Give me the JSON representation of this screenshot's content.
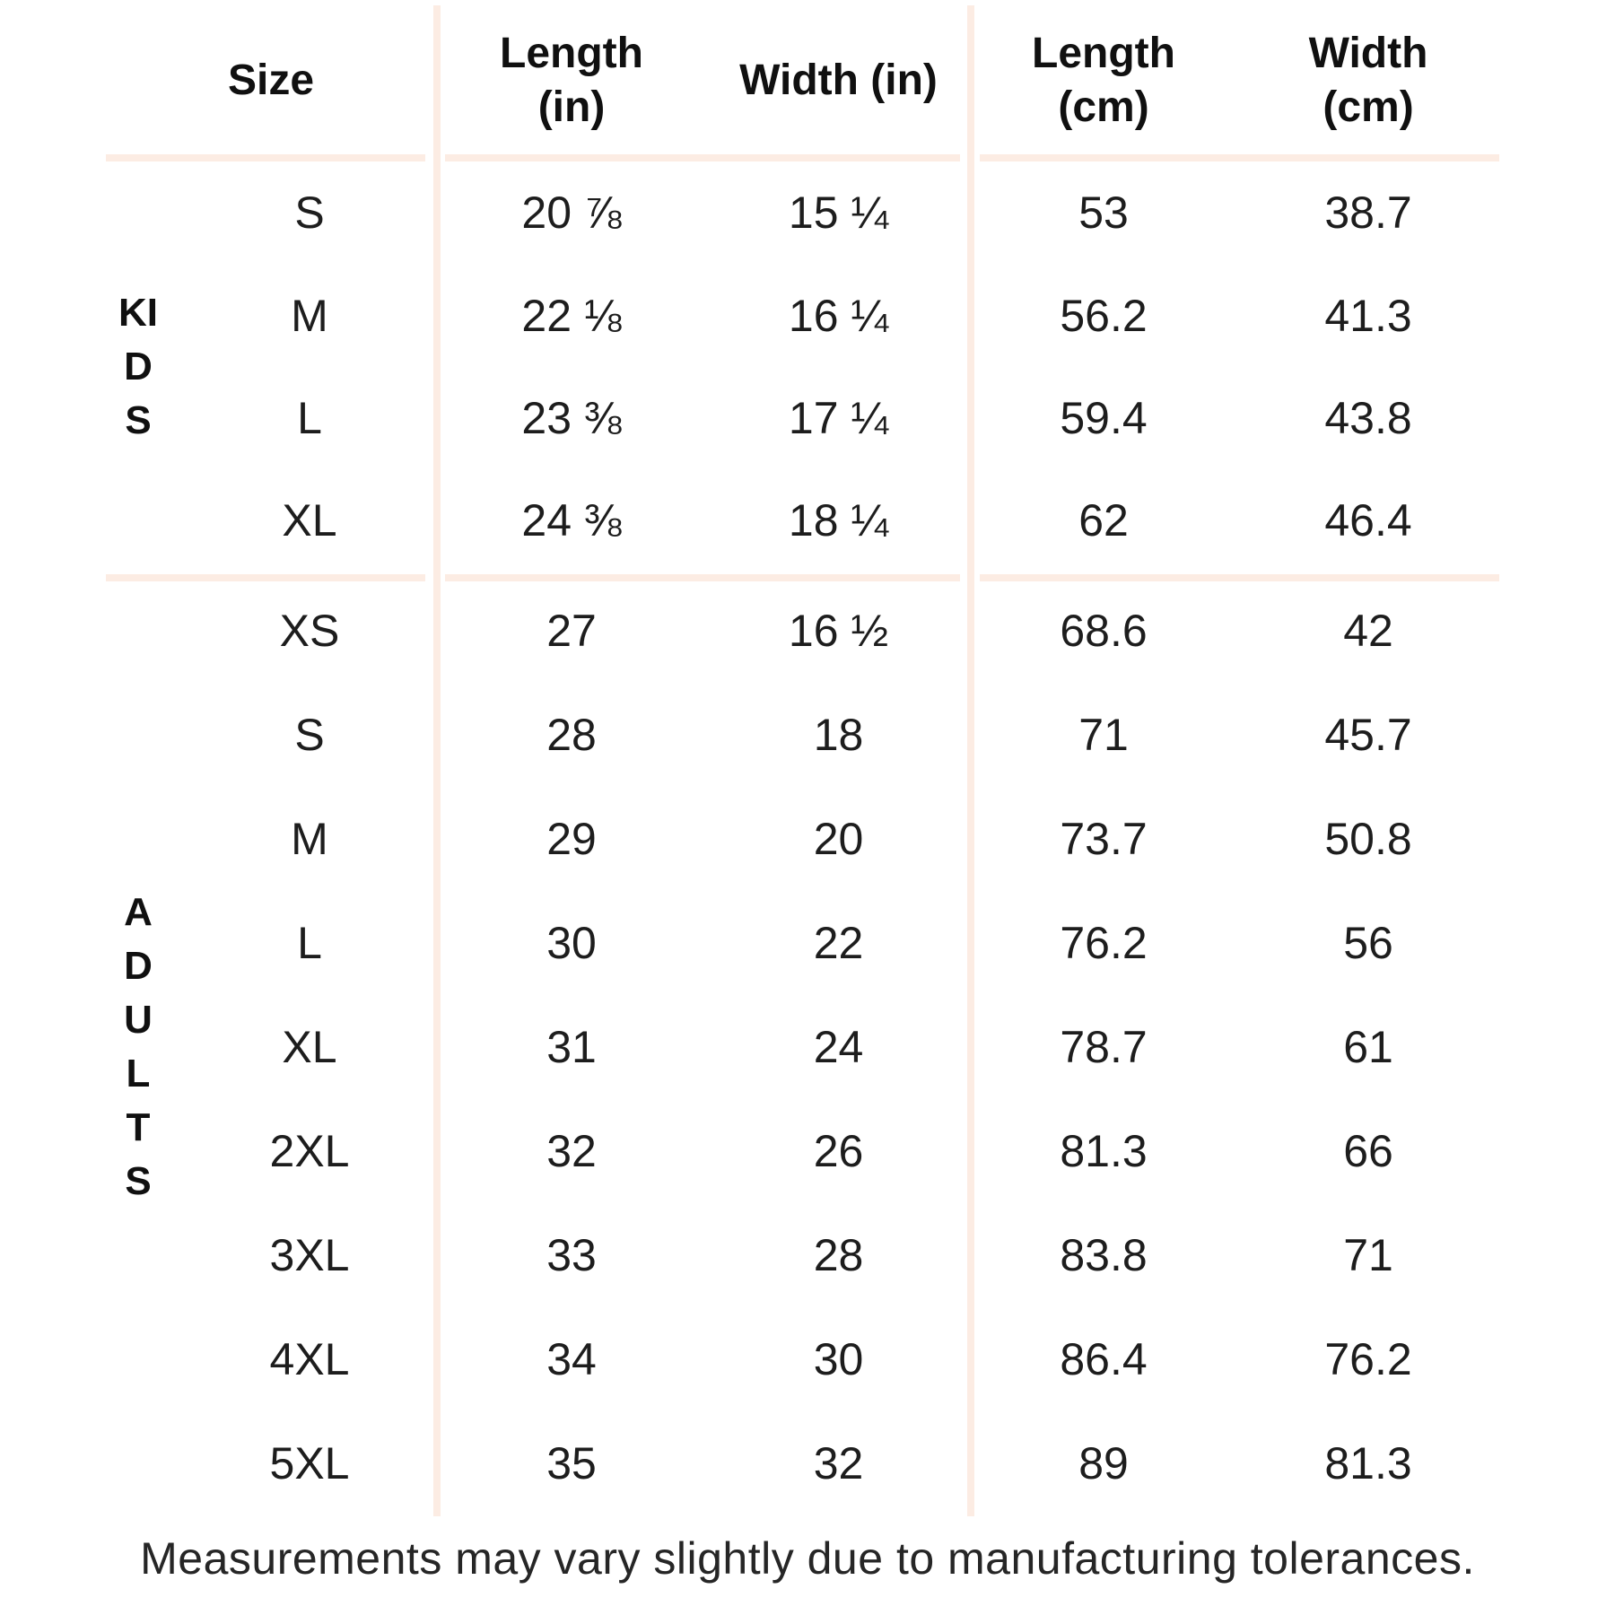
{
  "colors": {
    "divider": "#fcece3",
    "text": "#1d1d1d",
    "heading": "#101010"
  },
  "table": {
    "headers": {
      "size": "Size",
      "length_in": "Length (in)",
      "width_in": "Width (in)",
      "length_cm": "Length (cm)",
      "width_cm": "Width (cm)"
    },
    "groups": [
      {
        "label": "KIDS",
        "rows": [
          {
            "size": "S",
            "length_in": "20 ⅞",
            "width_in": "15 ¼",
            "length_cm": "53",
            "width_cm": "38.7"
          },
          {
            "size": "M",
            "length_in": "22 ⅛",
            "width_in": "16 ¼",
            "length_cm": "56.2",
            "width_cm": "41.3"
          },
          {
            "size": "L",
            "length_in": "23 ⅜",
            "width_in": "17 ¼",
            "length_cm": "59.4",
            "width_cm": "43.8"
          },
          {
            "size": "XL",
            "length_in": "24 ⅜",
            "width_in": "18 ¼",
            "length_cm": "62",
            "width_cm": "46.4"
          }
        ]
      },
      {
        "label": "ADULTS",
        "rows": [
          {
            "size": "XS",
            "length_in": "27",
            "width_in": "16 ½",
            "length_cm": "68.6",
            "width_cm": "42"
          },
          {
            "size": "S",
            "length_in": "28",
            "width_in": "18",
            "length_cm": "71",
            "width_cm": "45.7"
          },
          {
            "size": "M",
            "length_in": "29",
            "width_in": "20",
            "length_cm": "73.7",
            "width_cm": "50.8"
          },
          {
            "size": "L",
            "length_in": "30",
            "width_in": "22",
            "length_cm": "76.2",
            "width_cm": "56"
          },
          {
            "size": "XL",
            "length_in": "31",
            "width_in": "24",
            "length_cm": "78.7",
            "width_cm": "61"
          },
          {
            "size": "2XL",
            "length_in": "32",
            "width_in": "26",
            "length_cm": "81.3",
            "width_cm": "66"
          },
          {
            "size": "3XL",
            "length_in": "33",
            "width_in": "28",
            "length_cm": "83.8",
            "width_cm": "71"
          },
          {
            "size": "4XL",
            "length_in": "34",
            "width_in": "30",
            "length_cm": "86.4",
            "width_cm": "76.2"
          },
          {
            "size": "5XL",
            "length_in": "35",
            "width_in": "32",
            "length_cm": "89",
            "width_cm": "81.3"
          }
        ]
      }
    ]
  },
  "footer": {
    "note": "Measurements may vary slightly due to manufacturing tolerances."
  }
}
